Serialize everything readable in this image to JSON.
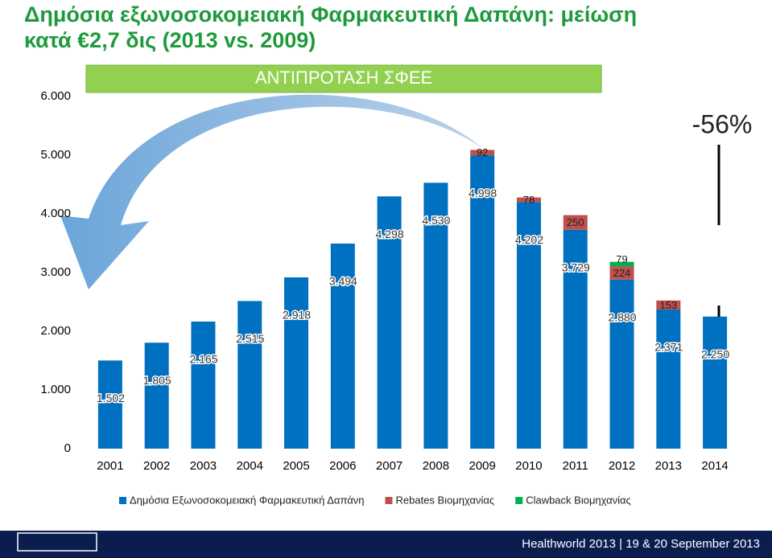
{
  "chart_data": {
    "type": "stacked_bar",
    "title": "Δημόσια εξωνοσοκομειακή Φαρμακευτική Δαπάνη: μείωση",
    "subtitle": "κατά €2,7 δις (2013 vs. 2009)",
    "banner": "ΑΝΤΙΠΡΟΤΑΣΗ ΣΦΕΕ",
    "change_label": "-56%",
    "categories": [
      "2001",
      "2002",
      "2003",
      "2004",
      "2005",
      "2006",
      "2007",
      "2008",
      "2009",
      "2010",
      "2011",
      "2012",
      "2013",
      "2014"
    ],
    "series": [
      {
        "name": "Δημόσια Εξωνοσοκομειακή Φαρμακευτική Δαπάνη",
        "color": "#0070c0",
        "values": [
          1502,
          1805,
          2165,
          2515,
          2918,
          3494,
          4298,
          4530,
          4998,
          4202,
          3729,
          2880,
          2371,
          2250
        ],
        "value_labels": [
          "1.502",
          "1.805",
          "2.165",
          "2.515",
          "2.918",
          "3.494",
          "4.298",
          "4.530",
          "4.998",
          "4.202",
          "3.729",
          "2.880",
          "2.371",
          "2.250"
        ]
      },
      {
        "name": "Rebates Βιομηχανίας",
        "color": "#c0504d",
        "values": [
          null,
          null,
          null,
          null,
          null,
          null,
          null,
          null,
          92,
          78,
          250,
          224,
          153,
          null
        ]
      },
      {
        "name": "Clawback Βιομηχανίας",
        "color": "#00b050",
        "values": [
          null,
          null,
          null,
          null,
          null,
          null,
          null,
          null,
          null,
          null,
          null,
          79,
          null,
          null
        ]
      }
    ],
    "ylim": [
      0,
      6000
    ],
    "yticks": [
      0,
      {
        "value": 1000,
        "label": "1.000"
      },
      {
        "value": 2000,
        "label": "2.000"
      },
      {
        "value": 3000,
        "label": "3.000"
      },
      {
        "value": 4000,
        "label": "4.000"
      },
      {
        "value": 5000,
        "label": "5.000"
      },
      {
        "value": 6000,
        "label": "6.000"
      }
    ],
    "legend": "bottom",
    "footer": "Healthworld 2013 | 19 & 20 September 2013"
  }
}
